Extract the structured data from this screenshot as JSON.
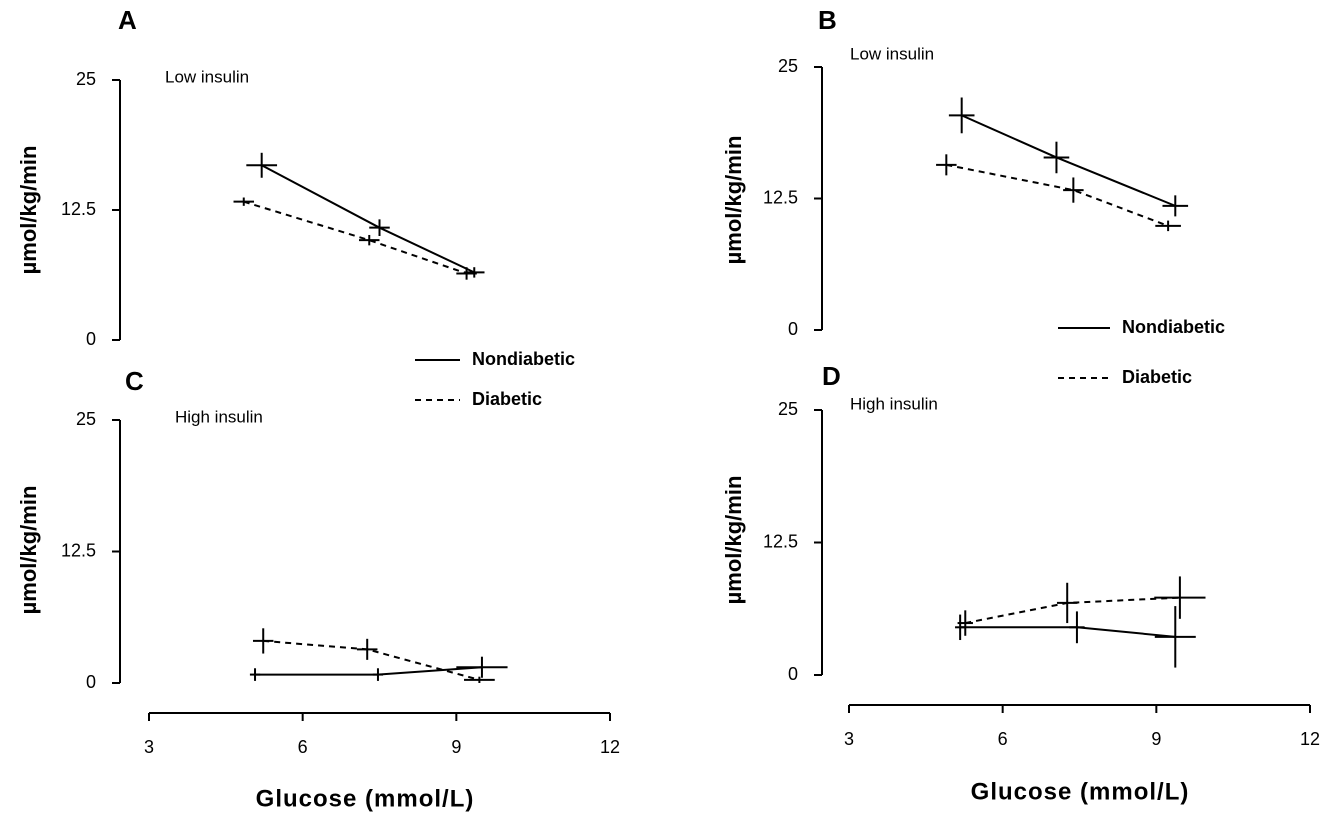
{
  "chart_data": [
    {
      "type": "line",
      "panel": "A",
      "subtitle": "Low insulin",
      "ylabel": "µmol/kg/min",
      "xlim": [
        3,
        12
      ],
      "ylim": [
        0,
        25
      ],
      "yticks": [
        0,
        12.5,
        25
      ],
      "legend": true,
      "series": [
        {
          "name": "Nondiabetic",
          "color": "#000000",
          "dash": "solid",
          "x": [
            5.2,
            7.5,
            9.35
          ],
          "values": [
            16.8,
            10.8,
            6.5
          ],
          "xerr": [
            0.3,
            0.2,
            0.2
          ],
          "yerr": [
            1.2,
            0.8,
            0.5
          ]
        },
        {
          "name": "Diabetic",
          "color": "#000000",
          "dash": "dashed",
          "x": [
            4.85,
            7.3,
            9.2
          ],
          "values": [
            13.3,
            9.6,
            6.4
          ],
          "xerr": [
            0.2,
            0.2,
            0.2
          ],
          "yerr": [
            0.4,
            0.5,
            0.6
          ]
        }
      ]
    },
    {
      "type": "line",
      "panel": "B",
      "subtitle": "Low insulin",
      "ylabel": "µmol/kg/min",
      "xlim": [
        3,
        12
      ],
      "ylim": [
        0,
        25
      ],
      "yticks": [
        0,
        12.5,
        25
      ],
      "legend": true,
      "series": [
        {
          "name": "Nondiabetic",
          "color": "#000000",
          "dash": "solid",
          "x": [
            5.2,
            7.05,
            9.37
          ],
          "values": [
            20.4,
            16.4,
            11.8
          ],
          "xerr": [
            0.25,
            0.25,
            0.25
          ],
          "yerr": [
            1.7,
            1.5,
            1.0
          ]
        },
        {
          "name": "Diabetic",
          "color": "#000000",
          "dash": "dashed",
          "x": [
            4.9,
            7.38,
            9.23
          ],
          "values": [
            15.7,
            13.3,
            9.9
          ],
          "xerr": [
            0.2,
            0.2,
            0.25
          ],
          "yerr": [
            1.0,
            1.2,
            0.5
          ]
        }
      ]
    },
    {
      "type": "line",
      "panel": "C",
      "subtitle": "High insulin",
      "ylabel": "µmol/kg/min",
      "xlabel": "Glucose (mmol/L)",
      "xlim": [
        3,
        12
      ],
      "xticks": [
        3,
        6,
        9,
        12
      ],
      "ylim": [
        0,
        25
      ],
      "yticks": [
        0,
        12.5,
        25
      ],
      "legend": false,
      "series": [
        {
          "name": "Nondiabetic",
          "color": "#000000",
          "dash": "solid",
          "x": [
            5.07,
            7.47,
            9.5
          ],
          "values": [
            0.8,
            0.8,
            1.5
          ],
          "xerr": [
            0.1,
            0.1,
            0.5
          ],
          "yerr": [
            0.6,
            0.6,
            1.0
          ]
        },
        {
          "name": "Diabetic",
          "color": "#000000",
          "dash": "dashed",
          "x": [
            5.23,
            7.26,
            9.45
          ],
          "values": [
            4.0,
            3.2,
            0.3
          ],
          "xerr": [
            0.2,
            0.2,
            0.3
          ],
          "yerr": [
            1.2,
            1.0,
            0.3
          ]
        }
      ]
    },
    {
      "type": "line",
      "panel": "D",
      "subtitle": "High insulin",
      "ylabel": "µmol/kg/min",
      "xlabel": "Glucose (mmol/L)",
      "xlim": [
        3,
        12
      ],
      "xticks": [
        3,
        6,
        9,
        12
      ],
      "ylim": [
        0,
        25
      ],
      "yticks": [
        0,
        12.5,
        25
      ],
      "legend": false,
      "series": [
        {
          "name": "Nondiabetic",
          "color": "#000000",
          "dash": "solid",
          "x": [
            5.17,
            7.45,
            9.37
          ],
          "values": [
            4.5,
            4.5,
            3.6
          ],
          "xerr": [
            0.1,
            0.15,
            0.4
          ],
          "yerr": [
            1.2,
            1.5,
            2.9
          ]
        },
        {
          "name": "Diabetic",
          "color": "#000000",
          "dash": "dashed",
          "x": [
            5.27,
            7.26,
            9.46
          ],
          "values": [
            4.9,
            6.8,
            7.3
          ],
          "xerr": [
            0.15,
            0.2,
            0.5
          ],
          "yerr": [
            1.2,
            1.9,
            2.0
          ]
        }
      ]
    }
  ]
}
